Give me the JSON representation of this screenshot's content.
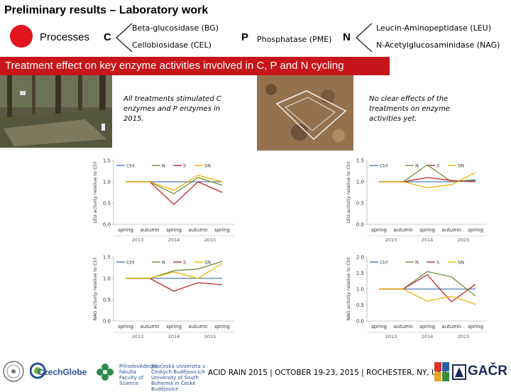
{
  "header": {
    "title": "Preliminary results – Laboratory work",
    "processes_label": "Processes",
    "c_letter": "C",
    "p_letter": "P",
    "n_letter": "N",
    "c_enzymes": [
      "Beta-glucosidase (BG)",
      "Cellobiosidase (CEL)"
    ],
    "p_enzymes": [
      "Phosphatase (PME)"
    ],
    "n_enzymes": [
      "Leucin-Aminopeptidase (LEU)",
      "N-Acetylglucosaminidase (NAG)"
    ],
    "legend_color": "#e3141c"
  },
  "banner": {
    "text": "Treatment effect on key enzyme activities involved in C, P and N cycling",
    "color": "#c6151b"
  },
  "notes": {
    "left": "All treatments stimulated C enzymes and P enzymes in 2015.",
    "right": "No clear effects of the treatments on enzyme activities yet."
  },
  "footer": {
    "text": "ACID RAIN 2015 | OCTOBER 19-23, 2015 | ROCHESTER, NY, USA",
    "logo_czechglobe": "CzechGlobe",
    "logo_faculty": "Přírodovědecká fakulta Faculty of Science",
    "logo_university": "Jihočeská univerzita v Českých Budějovicích University of South Bohemia in České Budějovice",
    "logo_gacr": "GAČR"
  },
  "chart_data": [
    {
      "type": "line",
      "title": "",
      "ylabel": "LEU activity relative to Ctrl",
      "categories": [
        "spring",
        "autumn",
        "spring",
        "autumn",
        "spring"
      ],
      "years": [
        "2013",
        "2014",
        "2015"
      ],
      "ylim": [
        0,
        1.5
      ],
      "yticks": [
        "0.0",
        "0.5",
        "1.0",
        "1.5"
      ],
      "legend": "top",
      "series": [
        {
          "name": "Ctrl",
          "color": "#4a7ab8",
          "values": [
            1.0,
            1.0,
            1.0,
            1.0,
            1.0
          ]
        },
        {
          "name": "N",
          "color": "#6f8f3a",
          "values": [
            1.0,
            1.0,
            0.72,
            1.1,
            0.92
          ]
        },
        {
          "name": "S",
          "color": "#c0282b",
          "values": [
            1.0,
            1.0,
            0.47,
            1.0,
            0.75
          ]
        },
        {
          "name": "SN",
          "color": "#f0b400",
          "values": [
            1.0,
            1.0,
            0.8,
            1.15,
            1.0
          ]
        }
      ]
    },
    {
      "type": "line",
      "title": "",
      "ylabel": "LEU activity relative to Ctrl",
      "categories": [
        "spring",
        "autumn",
        "spring",
        "autumn",
        "spring"
      ],
      "years": [
        "2013",
        "2014",
        "2015"
      ],
      "ylim": [
        0,
        1.5
      ],
      "yticks": [
        "0.0",
        "0.5",
        "1.0",
        "1.5"
      ],
      "legend": "top",
      "series": [
        {
          "name": "Ctrl",
          "color": "#4a7ab8",
          "values": [
            1.0,
            1.0,
            1.0,
            1.0,
            1.03
          ]
        },
        {
          "name": "N",
          "color": "#6f8f3a",
          "values": [
            1.0,
            1.0,
            1.4,
            1.0,
            1.05
          ]
        },
        {
          "name": "S",
          "color": "#c0282b",
          "values": [
            1.0,
            1.0,
            1.1,
            1.03,
            1.0
          ]
        },
        {
          "name": "SN",
          "color": "#f0b400",
          "values": [
            1.0,
            1.0,
            0.86,
            0.93,
            1.22
          ]
        }
      ]
    },
    {
      "type": "line",
      "title": "",
      "ylabel": "NAG activity relative to Ctrl",
      "categories": [
        "spring",
        "autumn",
        "spring",
        "autumn",
        "spring"
      ],
      "years": [
        "2013",
        "2014",
        "2015"
      ],
      "ylim": [
        0,
        1.5
      ],
      "yticks": [
        "0.0",
        "0.5",
        "1.0",
        "1.5"
      ],
      "legend": "top",
      "series": [
        {
          "name": "Ctrl",
          "color": "#4a7ab8",
          "values": [
            1.0,
            1.0,
            1.0,
            1.0,
            1.0
          ]
        },
        {
          "name": "N",
          "color": "#6f8f3a",
          "values": [
            1.0,
            1.0,
            1.18,
            1.22,
            1.4
          ]
        },
        {
          "name": "S",
          "color": "#c0282b",
          "values": [
            1.0,
            1.0,
            0.7,
            0.9,
            0.85
          ]
        },
        {
          "name": "SN",
          "color": "#f0b400",
          "values": [
            1.0,
            1.0,
            1.15,
            1.0,
            1.35
          ]
        }
      ]
    },
    {
      "type": "line",
      "title": "",
      "ylabel": "NAG activity relative to Ctrl",
      "categories": [
        "spring",
        "autumn",
        "spring",
        "autumn",
        "spring"
      ],
      "years": [
        "2013",
        "2014",
        "2015"
      ],
      "ylim": [
        0,
        2.0
      ],
      "yticks": [
        "0.0",
        "0.5",
        "1.0",
        "1.5",
        "2.0"
      ],
      "legend": "top",
      "series": [
        {
          "name": "Ctrl",
          "color": "#4a7ab8",
          "values": [
            1.0,
            1.0,
            1.0,
            1.0,
            1.0
          ]
        },
        {
          "name": "N",
          "color": "#6f8f3a",
          "values": [
            1.0,
            1.0,
            1.55,
            1.38,
            0.78
          ]
        },
        {
          "name": "S",
          "color": "#c0282b",
          "values": [
            1.0,
            1.0,
            1.45,
            0.6,
            1.15
          ]
        },
        {
          "name": "SN",
          "color": "#f0b400",
          "values": [
            1.0,
            1.0,
            0.62,
            0.78,
            0.52
          ]
        }
      ]
    }
  ]
}
